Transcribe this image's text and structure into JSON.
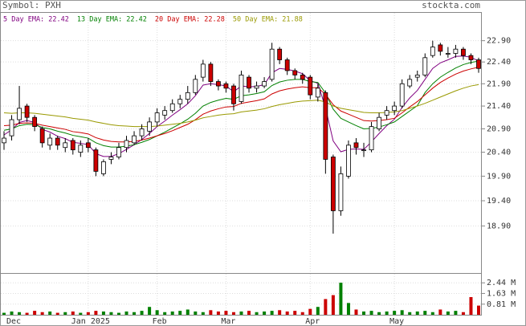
{
  "chart_data": {
    "type": "candlestick",
    "symbol_label": "Symbol: PXH",
    "source": "stockta.com",
    "log": true,
    "grid": true,
    "up_color": "#ffffff",
    "down_color": "#cc0000",
    "volume_up_color": "#008000",
    "volume_down_color": "#cc0000",
    "categories": [
      "Dec",
      null,
      null,
      null,
      null,
      null,
      null,
      null,
      null,
      null,
      null,
      "Jan 2025",
      null,
      null,
      null,
      null,
      null,
      null,
      null,
      null,
      "Feb",
      null,
      null,
      null,
      null,
      null,
      null,
      null,
      null,
      "Mar",
      null,
      null,
      null,
      null,
      null,
      null,
      null,
      null,
      null,
      null,
      "Apr",
      null,
      null,
      null,
      null,
      null,
      null,
      null,
      null,
      null,
      null,
      "May",
      null,
      null,
      null,
      null,
      null,
      null,
      null,
      null,
      null,
      null,
      null
    ],
    "open": [
      20.6,
      20.75,
      21.1,
      21.4,
      21.15,
      20.9,
      20.55,
      20.7,
      20.5,
      20.65,
      20.4,
      20.6,
      20.45,
      19.95,
      20.25,
      20.3,
      20.5,
      20.6,
      20.75,
      20.85,
      21.05,
      21.2,
      21.3,
      21.45,
      21.55,
      21.7,
      22.05,
      22.35,
      21.95,
      21.9,
      21.85,
      21.5,
      22.05,
      21.8,
      21.85,
      22.0,
      22.7,
      22.45,
      22.2,
      22.1,
      22.05,
      21.6,
      21.7,
      20.3,
      19.2,
      19.9,
      20.6,
      20.45,
      20.45,
      20.9,
      21.2,
      21.3,
      21.4,
      21.85,
      22.05,
      22.1,
      22.55,
      22.8,
      22.6,
      22.6,
      22.7,
      22.55,
      22.45
    ],
    "high": [
      20.85,
      21.2,
      21.85,
      21.45,
      21.2,
      20.95,
      20.8,
      20.75,
      20.7,
      20.7,
      20.65,
      20.7,
      20.5,
      20.25,
      20.4,
      20.6,
      20.75,
      20.85,
      21.0,
      21.15,
      21.35,
      21.4,
      21.55,
      21.65,
      21.85,
      22.1,
      22.45,
      22.4,
      22.0,
      21.95,
      21.9,
      22.2,
      22.1,
      21.95,
      22.05,
      22.85,
      22.75,
      22.5,
      22.25,
      22.15,
      22.1,
      21.9,
      21.75,
      20.35,
      20.1,
      20.65,
      20.7,
      20.6,
      21.05,
      21.25,
      21.4,
      21.5,
      22.0,
      22.1,
      22.2,
      22.6,
      22.9,
      22.85,
      22.75,
      22.8,
      22.75,
      22.6,
      22.5
    ],
    "low": [
      20.45,
      20.65,
      21.0,
      21.05,
      20.85,
      20.5,
      20.45,
      20.45,
      20.4,
      20.35,
      20.3,
      20.4,
      19.9,
      19.9,
      20.15,
      20.25,
      20.4,
      20.55,
      20.65,
      20.75,
      20.95,
      21.1,
      21.25,
      21.35,
      21.45,
      21.65,
      21.95,
      21.85,
      21.75,
      21.7,
      21.3,
      21.45,
      21.7,
      21.7,
      21.8,
      21.95,
      22.35,
      22.1,
      22.0,
      21.9,
      21.55,
      21.5,
      19.95,
      18.75,
      19.1,
      19.85,
      20.35,
      20.3,
      20.4,
      20.85,
      21.1,
      21.2,
      21.35,
      21.8,
      21.95,
      22.05,
      22.5,
      22.55,
      22.5,
      22.5,
      22.45,
      22.35,
      22.15
    ],
    "close": [
      20.7,
      21.1,
      21.35,
      21.15,
      20.95,
      20.6,
      20.7,
      20.55,
      20.6,
      20.45,
      20.55,
      20.5,
      20.0,
      20.2,
      20.3,
      20.5,
      20.65,
      20.75,
      20.9,
      21.05,
      21.25,
      21.3,
      21.45,
      21.55,
      21.7,
      22.0,
      22.35,
      21.95,
      21.85,
      21.8,
      21.45,
      22.1,
      21.8,
      21.85,
      21.95,
      22.7,
      22.45,
      22.2,
      22.1,
      22.0,
      21.65,
      21.8,
      20.25,
      19.2,
      19.95,
      20.55,
      20.5,
      20.45,
      20.95,
      21.15,
      21.3,
      21.4,
      21.9,
      22.0,
      22.1,
      22.5,
      22.75,
      22.65,
      22.6,
      22.7,
      22.55,
      22.45,
      22.25
    ],
    "volume": [
      0.15,
      0.25,
      0.2,
      0.15,
      0.3,
      0.2,
      0.25,
      0.15,
      0.2,
      0.25,
      0.15,
      0.2,
      0.3,
      0.25,
      0.2,
      0.15,
      0.25,
      0.2,
      0.3,
      0.6,
      0.35,
      0.2,
      0.25,
      0.3,
      0.4,
      0.25,
      0.2,
      0.35,
      0.25,
      0.3,
      0.2,
      0.25,
      0.3,
      0.2,
      0.25,
      0.3,
      0.35,
      0.25,
      0.3,
      0.2,
      0.45,
      0.6,
      1.2,
      1.5,
      2.45,
      0.9,
      0.4,
      0.25,
      0.3,
      0.2,
      0.25,
      0.3,
      0.35,
      0.2,
      0.25,
      0.3,
      0.2,
      0.4,
      0.25,
      0.3,
      0.2,
      1.35,
      0.7
    ],
    "series": [
      {
        "name": "5 Day EMA: 22.42",
        "color": "#800080",
        "values": [
          20.77,
          20.88,
          21.04,
          21.08,
          21.04,
          20.89,
          20.83,
          20.74,
          20.69,
          20.61,
          20.59,
          20.56,
          20.37,
          20.31,
          20.31,
          20.37,
          20.46,
          20.56,
          20.67,
          20.8,
          20.95,
          21.07,
          21.2,
          21.32,
          21.45,
          21.63,
          21.87,
          21.9,
          21.88,
          21.85,
          21.72,
          21.85,
          21.83,
          21.84,
          21.88,
          22.15,
          22.25,
          22.23,
          22.19,
          22.13,
          21.97,
          21.91,
          21.36,
          20.64,
          20.41,
          20.46,
          20.47,
          20.46,
          20.62,
          20.8,
          20.97,
          21.11,
          21.37,
          21.58,
          21.75,
          22.0,
          22.25,
          22.38,
          22.45,
          22.53,
          22.54,
          22.51,
          22.42
        ]
      },
      {
        "name": "13 Day EMA: 22.42",
        "color": "#008000",
        "values": [
          20.87,
          20.9,
          20.97,
          21.0,
          20.99,
          20.93,
          20.9,
          20.85,
          20.81,
          20.76,
          20.73,
          20.7,
          20.6,
          20.54,
          20.51,
          20.51,
          20.53,
          20.56,
          20.61,
          20.67,
          20.75,
          20.83,
          20.92,
          21.01,
          21.11,
          21.24,
          21.4,
          21.48,
          21.53,
          21.57,
          21.55,
          21.63,
          21.65,
          21.68,
          21.72,
          21.86,
          21.94,
          21.98,
          22.0,
          22.0,
          21.95,
          21.93,
          21.69,
          21.33,
          21.13,
          21.05,
          20.97,
          20.9,
          20.91,
          20.94,
          20.99,
          21.05,
          21.17,
          21.29,
          21.41,
          21.7,
          21.9,
          22.05,
          22.16,
          22.26,
          22.34,
          22.39,
          22.42
        ]
      },
      {
        "name": "20 Day EMA: 22.28",
        "color": "#cc0000",
        "values": [
          20.97,
          20.98,
          21.02,
          21.03,
          21.02,
          20.98,
          20.95,
          20.92,
          20.89,
          20.84,
          20.82,
          20.79,
          20.71,
          20.66,
          20.63,
          20.62,
          20.62,
          20.63,
          20.66,
          20.7,
          20.75,
          20.8,
          20.86,
          20.93,
          21.0,
          21.1,
          21.22,
          21.29,
          21.34,
          21.38,
          21.39,
          21.46,
          21.49,
          21.52,
          21.56,
          21.67,
          21.74,
          21.78,
          21.81,
          21.83,
          21.81,
          21.81,
          21.66,
          21.43,
          21.29,
          21.22,
          21.15,
          21.08,
          21.07,
          21.08,
          21.1,
          21.13,
          21.25,
          21.38,
          21.5,
          21.65,
          21.8,
          21.93,
          22.03,
          22.12,
          22.19,
          22.24,
          22.28
        ]
      },
      {
        "name": "50 Day EMA: 21.88",
        "color": "#999900",
        "values": [
          21.25,
          21.24,
          21.25,
          21.25,
          21.24,
          21.22,
          21.2,
          21.18,
          21.16,
          21.13,
          21.11,
          21.09,
          21.05,
          21.02,
          20.99,
          20.97,
          20.96,
          20.95,
          20.95,
          20.95,
          20.96,
          20.98,
          21.0,
          21.02,
          21.05,
          21.09,
          21.14,
          21.17,
          21.2,
          21.22,
          21.23,
          21.27,
          21.29,
          21.31,
          21.34,
          21.39,
          21.43,
          21.46,
          21.49,
          21.51,
          21.52,
          21.53,
          21.49,
          21.4,
          21.35,
          21.32,
          21.29,
          21.26,
          21.25,
          21.25,
          21.26,
          21.27,
          21.3,
          21.35,
          21.4,
          21.46,
          21.53,
          21.6,
          21.67,
          21.74,
          21.8,
          21.85,
          21.88
        ]
      }
    ],
    "ylim": [
      18.0,
      23.57
    ],
    "yticks": [
      {
        "value": 22.9,
        "label": "22.90"
      },
      {
        "value": 22.4,
        "label": "22.40"
      },
      {
        "value": 21.9,
        "label": "21.90"
      },
      {
        "value": 21.4,
        "label": "21.40"
      },
      {
        "value": 20.9,
        "label": "20.90"
      },
      {
        "value": 20.4,
        "label": "20.40"
      },
      {
        "value": 19.9,
        "label": "19.90"
      },
      {
        "value": 19.4,
        "label": "19.40"
      },
      {
        "value": 18.9,
        "label": "18.90"
      }
    ],
    "volume_ylim": [
      0,
      3.13
    ],
    "volume_yticks": [
      {
        "value": 2.44,
        "label": "2.44 M"
      },
      {
        "value": 1.63,
        "label": "1.63 M"
      },
      {
        "value": 0.81,
        "label": "0.81 M"
      }
    ]
  }
}
